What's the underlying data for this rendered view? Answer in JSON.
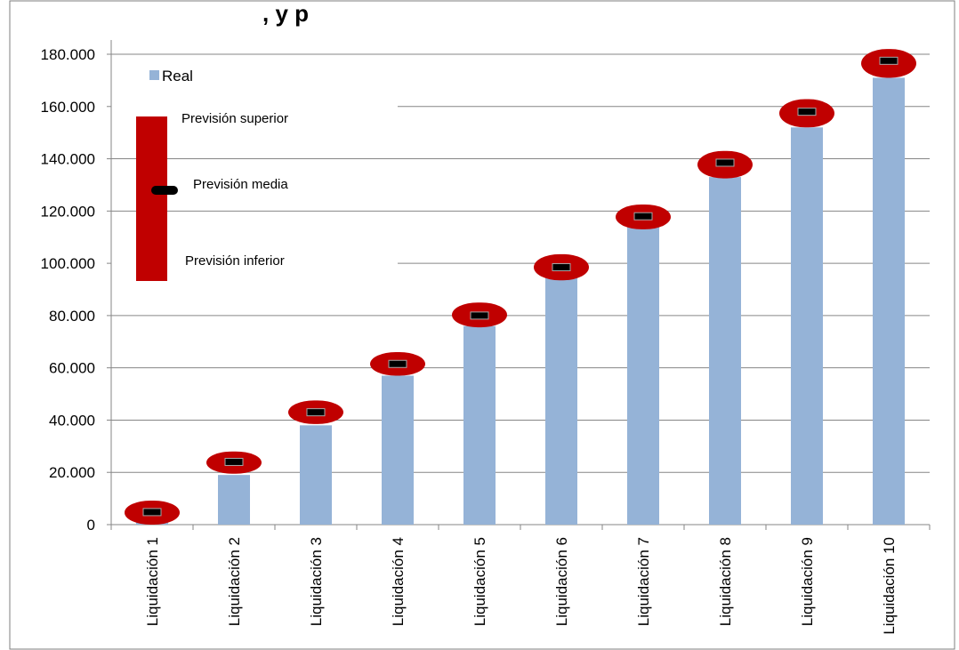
{
  "chart_data": {
    "type": "bar",
    "title": ", y p",
    "categories": [
      "Liquidación 1",
      "Liquidación 2",
      "Liquidación 3",
      "Liquidación 4",
      "Liquidación 5",
      "Liquidación 6",
      "Liquidación 7",
      "Liquidación 8",
      "Liquidación 9",
      "Liquidación 10"
    ],
    "series": [
      {
        "name": "Real",
        "type": "bar",
        "values": [
          4000,
          19000,
          38000,
          57000,
          76000,
          95000,
          114000,
          133000,
          152000,
          171000
        ],
        "color": "#95b3d7"
      },
      {
        "name": "Previsión superior",
        "type": "range-high",
        "values": [
          9200,
          28000,
          47500,
          66000,
          85000,
          103500,
          122500,
          143000,
          162800,
          182000
        ],
        "color": "#c00000"
      },
      {
        "name": "Previsión media",
        "type": "marker",
        "values": [
          4800,
          24000,
          43000,
          61500,
          80000,
          98500,
          118000,
          138500,
          158000,
          177500
        ],
        "color": "#000000"
      },
      {
        "name": "Previsión inferior",
        "type": "range-low",
        "values": [
          0,
          19500,
          38500,
          57000,
          75500,
          93500,
          113000,
          132500,
          152000,
          171000
        ],
        "color": "#c00000"
      }
    ],
    "y_ticks": [
      "0",
      "20.000",
      "40.000",
      "60.000",
      "80.000",
      "100.000",
      "120.000",
      "140.000",
      "160.000",
      "180.000"
    ],
    "ylim": [
      0,
      180000
    ],
    "grid": true,
    "legend_position": "top-left"
  },
  "legend": {
    "real": "Real",
    "superior": "Previsión superior",
    "media": "Previsión media",
    "inferior": "Previsión inferior"
  }
}
